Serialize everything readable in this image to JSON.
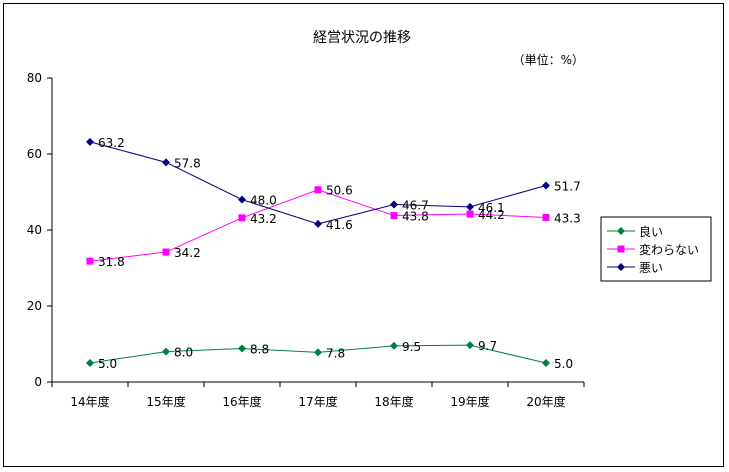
{
  "chart_data": {
    "type": "line",
    "title": "経営状況の推移",
    "unit_note": "（単位：%）",
    "categories": [
      "14年度",
      "15年度",
      "16年度",
      "17年度",
      "18年度",
      "19年度",
      "20年度"
    ],
    "ylim": [
      0,
      80
    ],
    "yticks": [
      0,
      20,
      40,
      60,
      80
    ],
    "grid": false,
    "legend_position": "right",
    "series": [
      {
        "name": "良い",
        "color": "#008040",
        "marker": "diamond",
        "values": [
          5.0,
          8.0,
          8.8,
          7.8,
          9.5,
          9.7,
          5.0
        ]
      },
      {
        "name": "変わらない",
        "color": "#ff00ff",
        "marker": "square",
        "values": [
          31.8,
          34.2,
          43.2,
          50.6,
          43.8,
          44.2,
          43.3
        ]
      },
      {
        "name": "悪い",
        "color": "#000080",
        "marker": "diamond",
        "values": [
          63.2,
          57.8,
          48.0,
          41.6,
          46.7,
          46.1,
          51.7
        ]
      }
    ]
  }
}
